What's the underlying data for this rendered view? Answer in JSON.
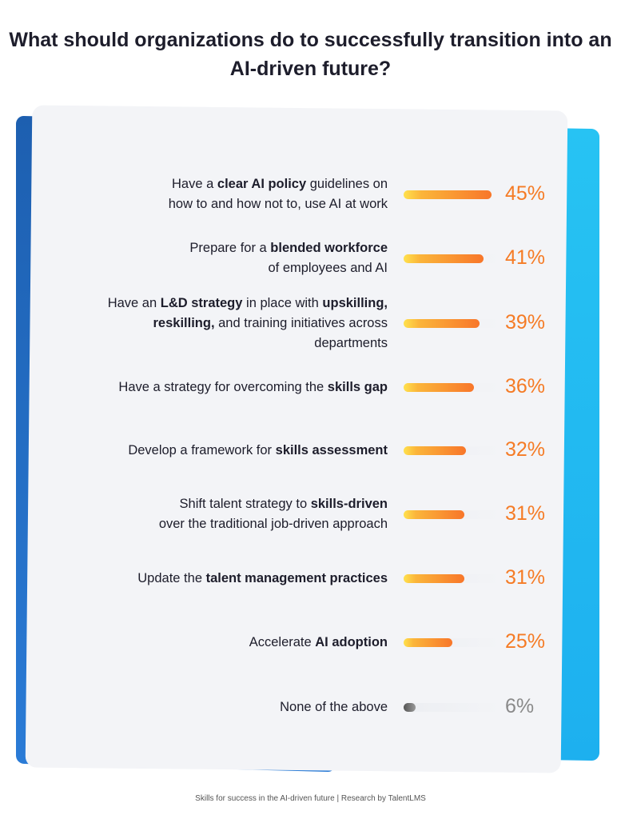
{
  "title": "What should organizations do to successfully transition into an AI-driven future?",
  "footer": "Skills for success in the AI-driven future  |  Research by TalentLMS",
  "colors": {
    "bar_start": "#ffe14d",
    "bar_end": "#f8762a",
    "value": "#f57b25",
    "none_value": "#8a8a8a",
    "accent_blue": "#1d5fb0",
    "accent_cyan": "#27c3f3"
  },
  "chart_data": {
    "type": "bar",
    "orientation": "horizontal",
    "categories": [
      "Have a clear AI policy guidelines on how to and how not to, use AI at work",
      "Prepare for a blended workforce of employees and AI",
      "Have an L&D strategy in place with upskilling, reskilling, and training initiatives across departments",
      "Have a strategy for overcoming the skills gap",
      "Develop a framework for skills assessment",
      "Shift talent strategy to skills-driven over the traditional job-driven approach",
      "Update the talent management practices",
      "Accelerate AI adoption",
      "None of the above"
    ],
    "values": [
      45,
      41,
      39,
      36,
      32,
      31,
      31,
      25,
      6
    ],
    "value_labels": [
      "45%",
      "41%",
      "39%",
      "36%",
      "32%",
      "31%",
      "31%",
      "25%",
      "6%"
    ],
    "label_segments": [
      [
        [
          "Have a ",
          0
        ],
        [
          "clear AI policy",
          1
        ],
        [
          " guidelines on",
          0
        ],
        [
          "\n",
          0
        ],
        [
          "how to and how not to, use AI at work",
          0
        ]
      ],
      [
        [
          "Prepare for a ",
          0
        ],
        [
          "blended workforce",
          1
        ],
        [
          "\n",
          0
        ],
        [
          "of employees and AI",
          0
        ]
      ],
      [
        [
          "Have an ",
          0
        ],
        [
          "L&D strategy",
          1
        ],
        [
          " in place with ",
          0
        ],
        [
          "upskilling,",
          1
        ],
        [
          "\n",
          0
        ],
        [
          "reskilling,",
          1
        ],
        [
          " and training initiatives across",
          0
        ],
        [
          "\n",
          0
        ],
        [
          "departments",
          0
        ]
      ],
      [
        [
          "Have a strategy for overcoming the ",
          0
        ],
        [
          "skills gap",
          1
        ]
      ],
      [
        [
          "Develop a framework for ",
          0
        ],
        [
          "skills assessment",
          1
        ]
      ],
      [
        [
          "Shift talent strategy to ",
          0
        ],
        [
          "skills-driven",
          1
        ],
        [
          "\n",
          0
        ],
        [
          "over the traditional job-driven approach",
          0
        ]
      ],
      [
        [
          "Update the ",
          0
        ],
        [
          "talent management practices",
          1
        ]
      ],
      [
        [
          "Accelerate ",
          0
        ],
        [
          "AI adoption",
          1
        ]
      ],
      [
        [
          "None of the above",
          0
        ]
      ]
    ],
    "xlim": [
      0,
      50
    ]
  }
}
